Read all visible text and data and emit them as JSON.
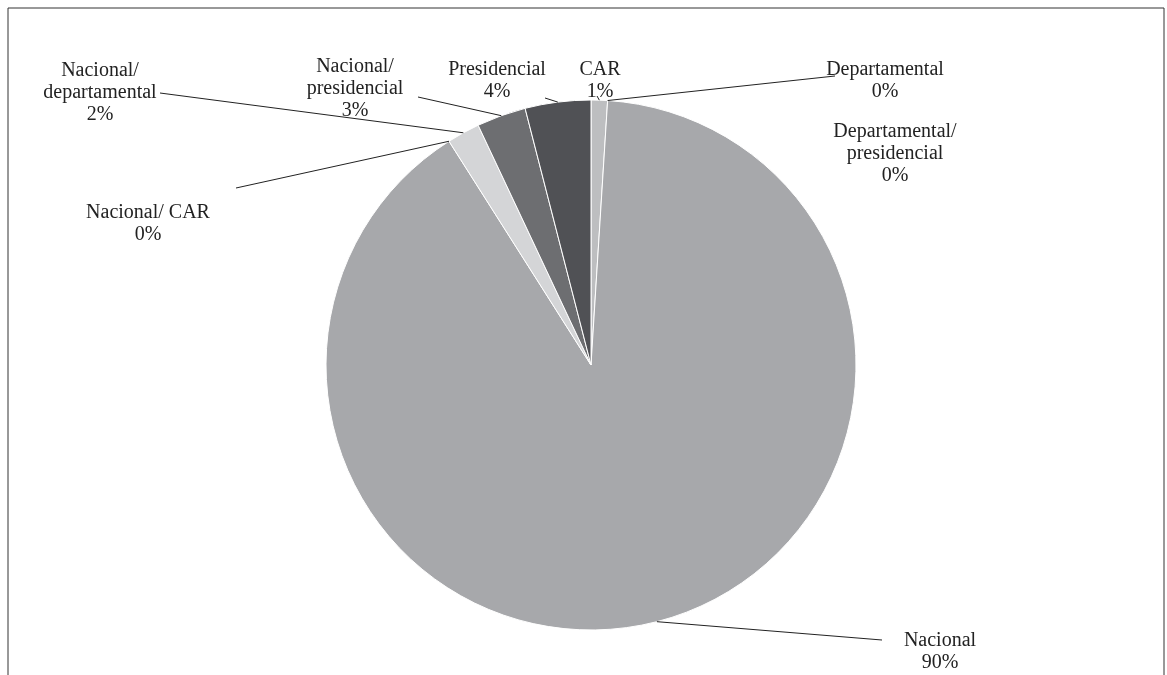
{
  "chart_data": {
    "type": "pie",
    "categories": [
      "CAR",
      "Departamental",
      "Departamental/presidencial",
      "Nacional",
      "Nacional/ CAR",
      "Nacional/departamental",
      "Nacional/presidencial",
      "Presidencial"
    ],
    "values": [
      1,
      0,
      0,
      90,
      0,
      2,
      3,
      4
    ],
    "value_labels": [
      "1%",
      "0%",
      "0%",
      "90%",
      "0%",
      "2%",
      "3%",
      "4%"
    ],
    "colors": [
      "#bdbec0",
      null,
      null,
      "#a7a8ab",
      null,
      "#d4d5d7",
      "#6d6e71",
      "#505155"
    ],
    "legend": false
  }
}
